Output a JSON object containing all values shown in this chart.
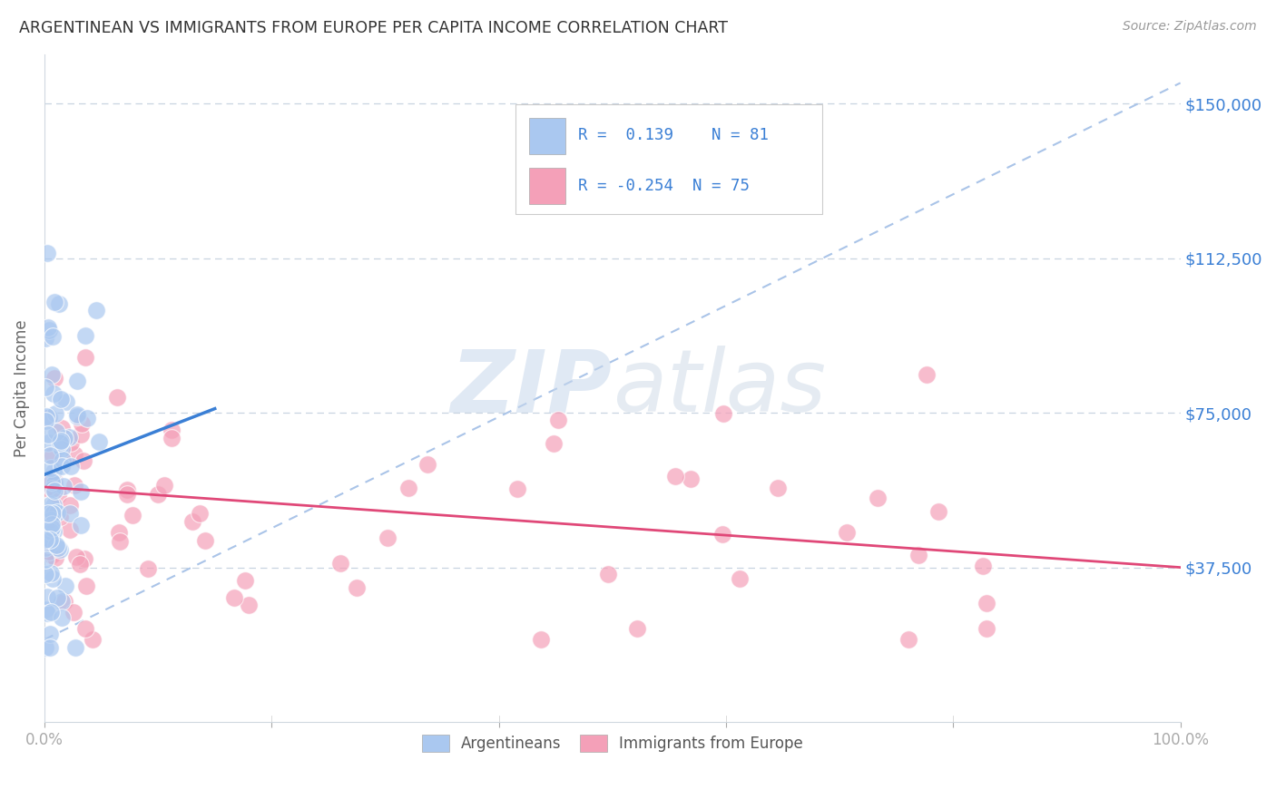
{
  "title": "ARGENTINEAN VS IMMIGRANTS FROM EUROPE PER CAPITA INCOME CORRELATION CHART",
  "source": "Source: ZipAtlas.com",
  "ylabel": "Per Capita Income",
  "ytick_vals": [
    0,
    37500,
    75000,
    112500,
    150000
  ],
  "ytick_labels": [
    "",
    "$37,500",
    "$75,000",
    "$112,500",
    "$150,000"
  ],
  "ylim": [
    0,
    162000
  ],
  "xlim": [
    0,
    1.0
  ],
  "blue_R": 0.139,
  "blue_N": 81,
  "pink_R": -0.254,
  "pink_N": 75,
  "blue_color": "#aac8f0",
  "pink_color": "#f4a0b8",
  "blue_line_color": "#3a7fd5",
  "pink_line_color": "#e04878",
  "dashed_line_color": "#aac4e8",
  "watermark_zip": "ZIP",
  "watermark_atlas": "atlas",
  "background_color": "#ffffff",
  "blue_line_x": [
    0.0,
    0.15
  ],
  "blue_line_y": [
    60000,
    76000
  ],
  "pink_line_x": [
    0.0,
    1.0
  ],
  "pink_line_y": [
    57000,
    37500
  ],
  "dash_line_x": [
    0.0,
    1.0
  ],
  "dash_line_y": [
    20000,
    155000
  ]
}
